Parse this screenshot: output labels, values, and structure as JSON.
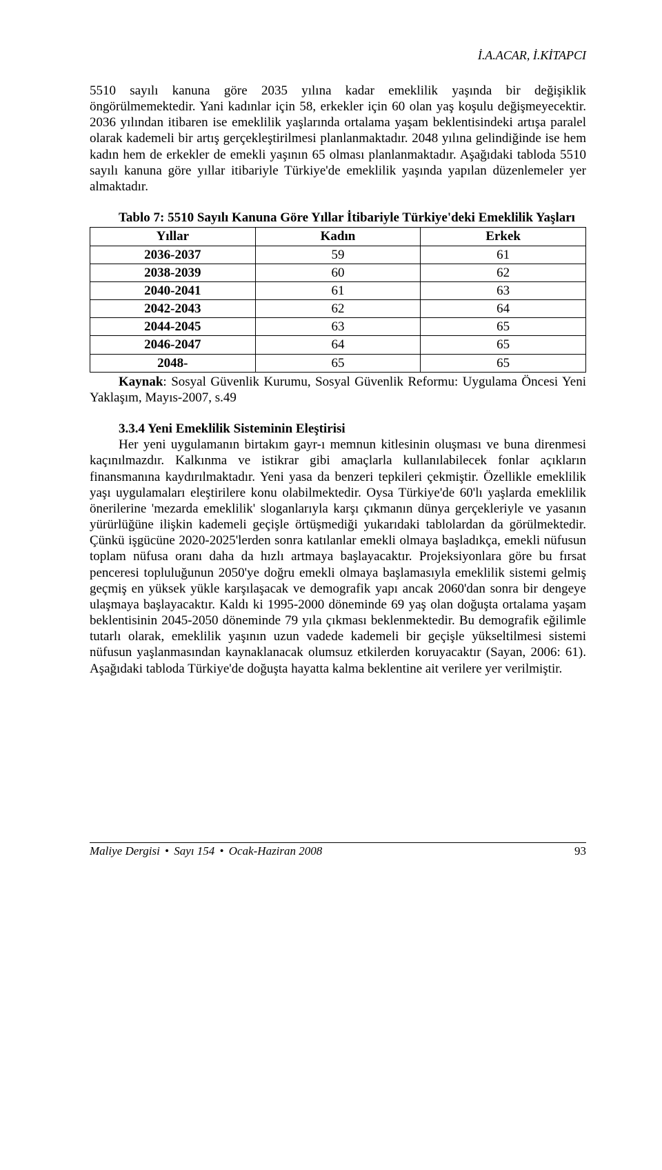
{
  "header": {
    "authors": "İ.A.ACAR, İ.KİTAPCI"
  },
  "intro": {
    "p1": "5510 sayılı kanuna göre 2035 yılına kadar emeklilik yaşında bir değişiklik öngörülmemektedir. Yani kadınlar için 58, erkekler için 60 olan yaş koşulu değişmeyecektir. 2036 yılından itibaren ise emeklilik yaşlarında ortalama yaşam beklentisindeki artışa paralel olarak kademeli bir artış gerçekleştirilmesi planlanmaktadır. 2048 yılına gelindiğinde ise hem kadın hem de erkekler de emekli yaşının 65 olması planlanmaktadır. Aşağıdaki tabloda 5510 sayılı kanuna göre yıllar itibariyle Türkiye'de emeklilik yaşında yapılan düzenlemeler yer almaktadır."
  },
  "table": {
    "title_lead": "Tablo  7: 5510 Sayılı Kanuna Göre Yıllar İtibariyle Türkiye'deki Emeklilik Yaşları",
    "columns": [
      "Yıllar",
      "Kadın",
      "Erkek"
    ],
    "rows": [
      [
        "2036-2037",
        "59",
        "61"
      ],
      [
        "2038-2039",
        "60",
        "62"
      ],
      [
        "2040-2041",
        "61",
        "63"
      ],
      [
        "2042-2043",
        "62",
        "64"
      ],
      [
        "2044-2045",
        "63",
        "65"
      ],
      [
        "2046-2047",
        "64",
        "65"
      ],
      [
        "2048-",
        "65",
        "65"
      ]
    ],
    "source_label": "Kaynak",
    "source_text": ": Sosyal Güvenlik Kurumu, Sosyal Güvenlik Reformu: Uygulama Öncesi Yeni Yaklaşım, Mayıs-2007, s.49"
  },
  "section": {
    "heading": "3.3.4  Yeni Emeklilik Sisteminin Eleştirisi",
    "body": "Her yeni uygulamanın birtakım gayr-ı memnun kitlesinin oluşması ve buna direnmesi kaçınılmazdır. Kalkınma ve istikrar gibi amaçlarla kullanılabilecek fonlar açıkların finansmanına kaydırılmaktadır.  Yeni yasa da benzeri tepkileri çekmiştir. Özellikle emeklilik yaşı uygulamaları eleştirilere konu olabilmektedir. Oysa Türkiye'de 60'lı yaşlarda emeklilik önerilerine 'mezarda emeklilik' sloganlarıyla karşı çıkmanın dünya gerçekleriyle ve yasanın yürürlüğüne ilişkin kademeli geçişle örtüşmediği yukarıdaki tablolardan da görülmektedir. Çünkü işgücüne 2020-2025'lerden sonra katılanlar emekli olmaya başladıkça, emekli nüfusun toplam nüfusa oranı daha da hızlı artmaya başlayacaktır. Projeksiyonlara göre bu fırsat penceresi topluluğunun 2050'ye doğru emekli olmaya başlamasıyla emeklilik sistemi gelmiş geçmiş en yüksek yükle karşılaşacak ve demografik yapı ancak 2060'dan sonra bir dengeye ulaşmaya başlayacaktır. Kaldı ki 1995-2000 döneminde 69 yaş olan doğuşta ortalama yaşam beklentisinin 2045-2050 döneminde 79 yıla çıkması beklenmektedir. Bu demografik eğilimle tutarlı olarak, emeklilik yaşının uzun vadede kademeli bir geçişle yükseltilmesi sistemi nüfusun yaşlanmasından kaynaklanacak olumsuz etkilerden koruyacaktır (Sayan, 2006: 61). Aşağıdaki tabloda Türkiye'de doğuşta hayatta kalma beklentine ait verilere yer verilmiştir."
  },
  "footer": {
    "journal": "Maliye Dergisi",
    "issue": "Sayı 154",
    "date": "Ocak-Haziran 2008",
    "page": "93"
  }
}
